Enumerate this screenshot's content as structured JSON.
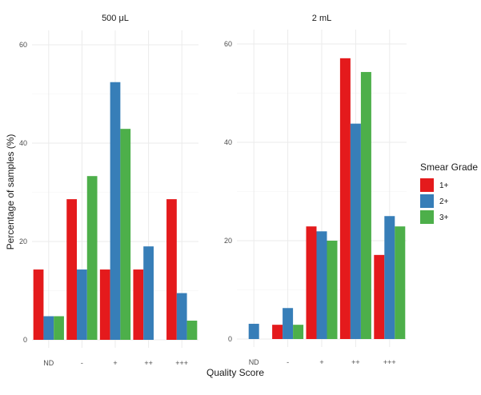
{
  "chart_data": {
    "type": "bar",
    "xlabel": "Quality Score",
    "ylabel": "Percentage of samples (%)",
    "categories": [
      "ND",
      "-",
      "+",
      "++",
      "+++"
    ],
    "legend": {
      "title": "Smear Grade",
      "position": "right",
      "items": [
        {
          "label": "1+",
          "color": "#e41a1c"
        },
        {
          "label": "2+",
          "color": "#377eb8"
        },
        {
          "label": "3+",
          "color": "#4daf4a"
        }
      ]
    },
    "grid": true,
    "panels": [
      {
        "title": "500 μL",
        "ylim": [
          0,
          60
        ],
        "yticks": [
          0,
          20,
          40,
          60
        ],
        "series": [
          {
            "name": "1+",
            "values": [
              14.3,
              28.6,
              14.3,
              14.3,
              28.6
            ]
          },
          {
            "name": "2+",
            "values": [
              4.8,
              14.3,
              52.4,
              19.0,
              9.5
            ]
          },
          {
            "name": "3+",
            "values": [
              4.8,
              33.3,
              42.9,
              0,
              3.9
            ]
          }
        ]
      },
      {
        "title": "2 mL",
        "ylim": [
          0,
          60
        ],
        "yticks": [
          0,
          20,
          40,
          60
        ],
        "series": [
          {
            "name": "1+",
            "values": [
              0,
              2.9,
              22.9,
              57.1,
              17.1
            ]
          },
          {
            "name": "2+",
            "values": [
              3.1,
              6.3,
              21.9,
              43.8,
              25.0
            ]
          },
          {
            "name": "3+",
            "values": [
              0,
              2.9,
              20.0,
              54.3,
              22.9
            ]
          }
        ]
      }
    ]
  }
}
